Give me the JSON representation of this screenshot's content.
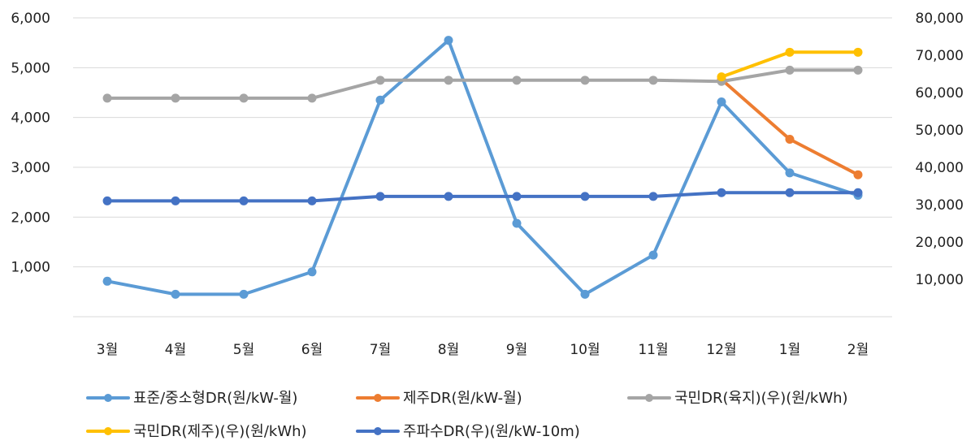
{
  "chart_data": {
    "type": "line",
    "categories": [
      "3월",
      "4월",
      "5월",
      "6월",
      "7월",
      "8월",
      "9월",
      "10월",
      "11월",
      "12월",
      "1월",
      "2월"
    ],
    "left_axis": {
      "min": 0,
      "max": 6000,
      "ticks": [
        "1,000",
        "2,000",
        "3,000",
        "4,000",
        "5,000",
        "6,000"
      ],
      "tick_values": [
        1000,
        2000,
        3000,
        4000,
        5000,
        6000
      ]
    },
    "right_axis": {
      "min": 0,
      "max": 80000,
      "ticks": [
        "10,000",
        "20,000",
        "30,000",
        "40,000",
        "50,000",
        "60,000",
        "70,000",
        "80,000"
      ],
      "tick_values": [
        10000,
        20000,
        30000,
        40000,
        50000,
        60000,
        70000,
        80000
      ]
    },
    "grid": "horizontal",
    "legend_position": "bottom",
    "series": [
      {
        "name": "표준/중소형DR(원/kW-월)",
        "axis": "right",
        "color": "#5B9BD5",
        "values": [
          9500,
          6000,
          6000,
          12000,
          58000,
          74000,
          25000,
          6000,
          16500,
          57500,
          38500,
          32500
        ]
      },
      {
        "name": "제주DR(원/kW-월)",
        "axis": "right",
        "color": "#ED7D31",
        "values": [
          null,
          null,
          null,
          null,
          null,
          null,
          null,
          null,
          null,
          63500,
          47500,
          38000
        ]
      },
      {
        "name": "국민DR(육지)(우)(원/kWh)",
        "axis": "right",
        "color": "#A5A5A5",
        "values": [
          58500,
          58500,
          58500,
          58500,
          63300,
          63300,
          63300,
          63300,
          63300,
          63000,
          66000,
          66000
        ]
      },
      {
        "name": "국민DR(제주)(우)(원/kWh)",
        "axis": "right",
        "color": "#FFC000",
        "values": [
          null,
          null,
          null,
          null,
          null,
          null,
          null,
          null,
          null,
          64200,
          70800,
          70800
        ]
      },
      {
        "name": "주파수DR(우)(원/kW-10m)",
        "axis": "right",
        "color": "#4472C4",
        "values": [
          31000,
          31000,
          31000,
          31000,
          32200,
          32200,
          32200,
          32200,
          32200,
          33200,
          33200,
          33200
        ]
      }
    ]
  }
}
